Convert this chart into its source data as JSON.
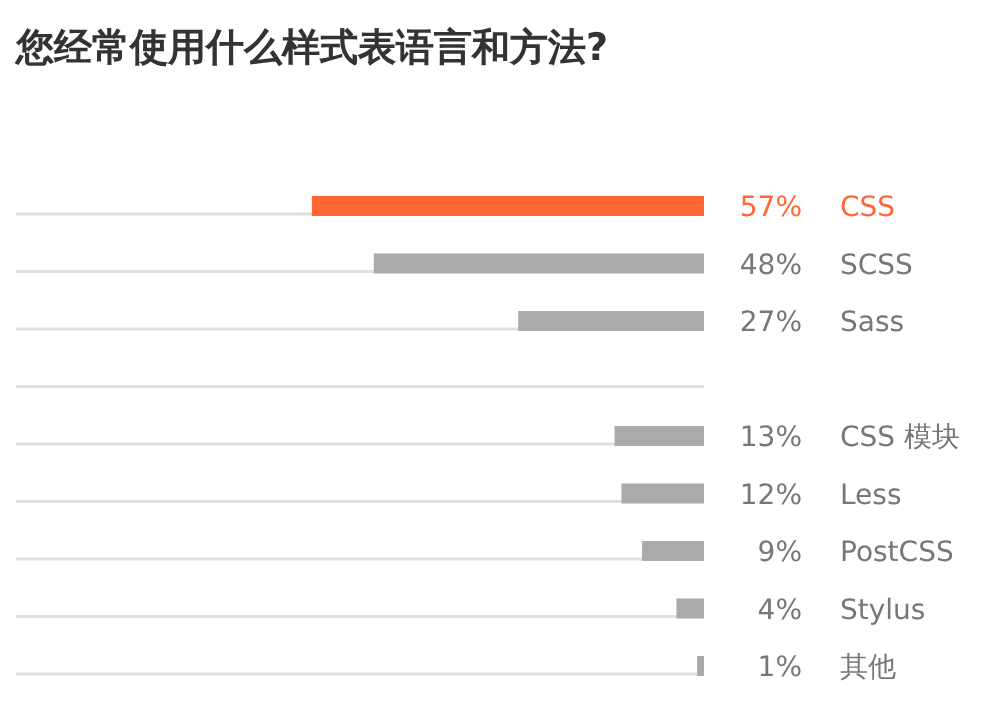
{
  "chart_data": {
    "type": "bar",
    "orientation": "horizontal",
    "title": "您经常使用什么样式表语言和方法?",
    "categories": [
      "CSS",
      "SCSS",
      "Sass",
      null,
      "CSS 模块",
      "Less",
      "PostCSS",
      "Stylus",
      "其他"
    ],
    "values": [
      57,
      48,
      27,
      null,
      13,
      12,
      9,
      4,
      1
    ],
    "colors": [
      "#ff6633",
      "#aaaaaa",
      "#aaaaaa",
      "#aaaaaa",
      "#aaaaaa",
      "#aaaaaa",
      "#aaaaaa",
      "#aaaaaa",
      "#aaaaaa"
    ],
    "value_labels": [
      "57%",
      "48%",
      "27%",
      null,
      "13%",
      "12%",
      "9%",
      "4%",
      "1%"
    ],
    "xlim": [
      100,
      0
    ]
  }
}
